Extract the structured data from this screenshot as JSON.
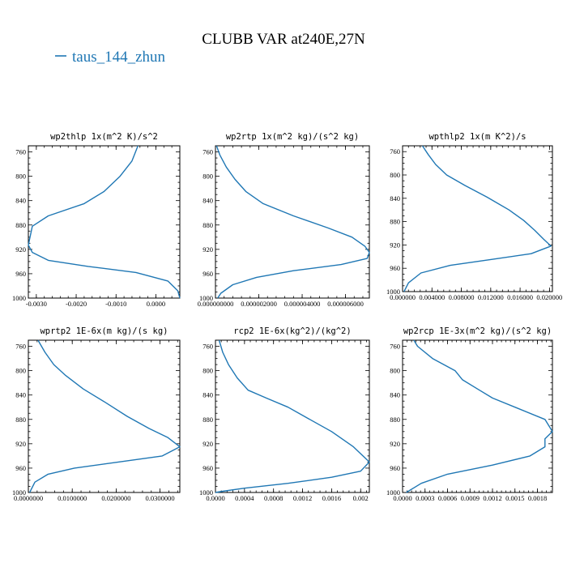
{
  "figure": {
    "title": "CLUBB VAR at240E,27N",
    "legend_label": "taus_144_zhun",
    "line_color": "#1f77b4"
  },
  "chart_data": [
    {
      "type": "line",
      "title": "wp2thlp  1x(m^2 K)/s^2",
      "xlim": [
        -0.0032,
        0.0006
      ],
      "ylim": [
        1000,
        750
      ],
      "xticks": [
        -0.003,
        -0.002,
        -0.001,
        0.0
      ],
      "xtick_labels": [
        "-0.0030",
        "-0.0020",
        "-0.0010",
        "0.0000"
      ],
      "yticks": [
        760,
        800,
        840,
        880,
        920,
        960,
        1000
      ],
      "ytick_labels": [
        "760",
        "800",
        "840",
        "880",
        "920",
        "960",
        "1000"
      ],
      "series": [
        {
          "x": [
            -0.00045,
            -0.0006,
            -0.0009,
            -0.0013,
            -0.0018,
            -0.0027,
            -0.0031,
            -0.0032,
            -0.0031,
            -0.0027,
            -0.0017,
            -0.0005,
            0.0003,
            0.00055,
            0.0006
          ],
          "y": [
            750,
            775,
            800,
            825,
            845,
            865,
            882,
            913,
            925,
            938,
            948,
            958,
            972,
            988,
            1000
          ]
        }
      ]
    },
    {
      "type": "line",
      "title": "wp2rtp  1x(m^2 kg)/(s^2 kg)",
      "xlim": [
        0,
        7.1e-06
      ],
      "ylim": [
        1000,
        750
      ],
      "xticks": [
        0,
        2e-06,
        4e-06,
        6e-06
      ],
      "xtick_labels": [
        "0.000000000",
        "0.000002000",
        "0.000004000",
        "0.000006000"
      ],
      "yticks": [
        760,
        800,
        840,
        880,
        920,
        960,
        1000
      ],
      "ytick_labels": [
        "760",
        "800",
        "840",
        "880",
        "920",
        "960",
        "1000"
      ],
      "series": [
        {
          "x": [
            5e-08,
            2e-07,
            5e-07,
            9e-07,
            1.4e-06,
            2.2e-06,
            3.6e-06,
            5.2e-06,
            6.3e-06,
            6.9e-06,
            7.1e-06,
            7e-06,
            5.8e-06,
            3.6e-06,
            1.9e-06,
            8e-07,
            2.5e-07,
            1e-07
          ],
          "y": [
            750,
            765,
            785,
            805,
            825,
            845,
            865,
            885,
            900,
            915,
            925,
            935,
            945,
            955,
            966,
            978,
            992,
            1000
          ]
        }
      ]
    },
    {
      "type": "line",
      "title": "wpthlp2  1x(m K^2)/s",
      "xlim": [
        0,
        0.0204
      ],
      "ylim": [
        1000,
        750
      ],
      "xticks": [
        0,
        0.004,
        0.008,
        0.012,
        0.016,
        0.02
      ],
      "xtick_labels": [
        "0.000000",
        "0.004000",
        "0.008000",
        "0.012000",
        "0.016000",
        "0.020000"
      ],
      "yticks": [
        760,
        800,
        840,
        880,
        920,
        960,
        1000
      ],
      "ytick_labels": [
        "760",
        "800",
        "840",
        "880",
        "920",
        "960",
        "1000"
      ],
      "series": [
        {
          "x": [
            0.0027,
            0.0035,
            0.0045,
            0.006,
            0.0085,
            0.0115,
            0.0145,
            0.0165,
            0.018,
            0.0192,
            0.0202,
            0.0175,
            0.012,
            0.0065,
            0.0025,
            0.0008,
            0.0002
          ],
          "y": [
            750,
            765,
            782,
            800,
            818,
            838,
            860,
            878,
            895,
            910,
            922,
            935,
            945,
            955,
            968,
            985,
            1000
          ]
        }
      ]
    },
    {
      "type": "line",
      "title": "wprtp2  1E-6x(m kg)/(s kg)",
      "xlim": [
        0,
        0.0345
      ],
      "ylim": [
        1000,
        750
      ],
      "xticks": [
        0,
        0.01,
        0.02,
        0.03
      ],
      "xtick_labels": [
        "0.0000000",
        "0.0100000",
        "0.0200000",
        "0.0300000"
      ],
      "yticks": [
        760,
        800,
        840,
        880,
        920,
        960,
        1000
      ],
      "ytick_labels": [
        "760",
        "800",
        "840",
        "880",
        "920",
        "960",
        "1000"
      ],
      "series": [
        {
          "x": [
            0.0022,
            0.0038,
            0.0058,
            0.0085,
            0.0125,
            0.0175,
            0.0225,
            0.0275,
            0.0318,
            0.0345,
            0.0305,
            0.0205,
            0.0105,
            0.0045,
            0.0015,
            0.0003
          ],
          "y": [
            750,
            770,
            790,
            808,
            830,
            852,
            875,
            895,
            910,
            925,
            940,
            950,
            960,
            970,
            983,
            1000
          ]
        }
      ]
    },
    {
      "type": "line",
      "title": "rcp2  1E-6x(kg^2)/(kg^2)",
      "xlim": [
        0,
        0.00212
      ],
      "ylim": [
        1000,
        750
      ],
      "xticks": [
        0,
        0.0004,
        0.0008,
        0.0012,
        0.0016,
        0.002
      ],
      "xtick_labels": [
        "0.0000",
        "0.0004",
        "0.0008",
        "0.0012",
        "0.0016",
        "0.002"
      ],
      "yticks": [
        760,
        800,
        840,
        880,
        920,
        960,
        1000
      ],
      "ytick_labels": [
        "760",
        "800",
        "840",
        "880",
        "920",
        "960",
        "1000"
      ],
      "series": [
        {
          "x": [
            5e-05,
            0.0001,
            0.00018,
            0.0003,
            0.00045,
            0.0007,
            0.001,
            0.0013,
            0.0016,
            0.0019,
            0.00212,
            0.002,
            0.0016,
            0.001,
            0.0004,
            0.0001,
            0.0
          ],
          "y": [
            750,
            770,
            790,
            812,
            832,
            845,
            860,
            880,
            900,
            925,
            950,
            965,
            975,
            985,
            993,
            998,
            1000
          ]
        }
      ]
    },
    {
      "type": "line",
      "title": "wp2rcp  1E-3x(m^2 kg)/(s^2 kg)",
      "xlim": [
        0,
        0.002
      ],
      "ylim": [
        1000,
        750
      ],
      "xticks": [
        0,
        0.0003,
        0.0006,
        0.0009,
        0.0012,
        0.0015,
        0.0018
      ],
      "xtick_labels": [
        "0.0000",
        "0.0003",
        "0.0006",
        "0.0009",
        "0.0012",
        "0.0015",
        "0.0018"
      ],
      "yticks": [
        760,
        800,
        840,
        880,
        920,
        960,
        1000
      ],
      "ytick_labels": [
        "760",
        "800",
        "840",
        "880",
        "920",
        "960",
        "1000"
      ],
      "series": [
        {
          "x": [
            0.00015,
            0.0002,
            0.0004,
            0.0007,
            0.0008,
            0.001,
            0.0012,
            0.0015,
            0.0019,
            0.002,
            0.0019,
            0.0019,
            0.0017,
            0.0012,
            0.0006,
            0.00025,
            5e-05
          ],
          "y": [
            750,
            760,
            780,
            800,
            815,
            830,
            845,
            860,
            880,
            900,
            912,
            925,
            940,
            955,
            970,
            985,
            1000
          ]
        }
      ]
    }
  ]
}
